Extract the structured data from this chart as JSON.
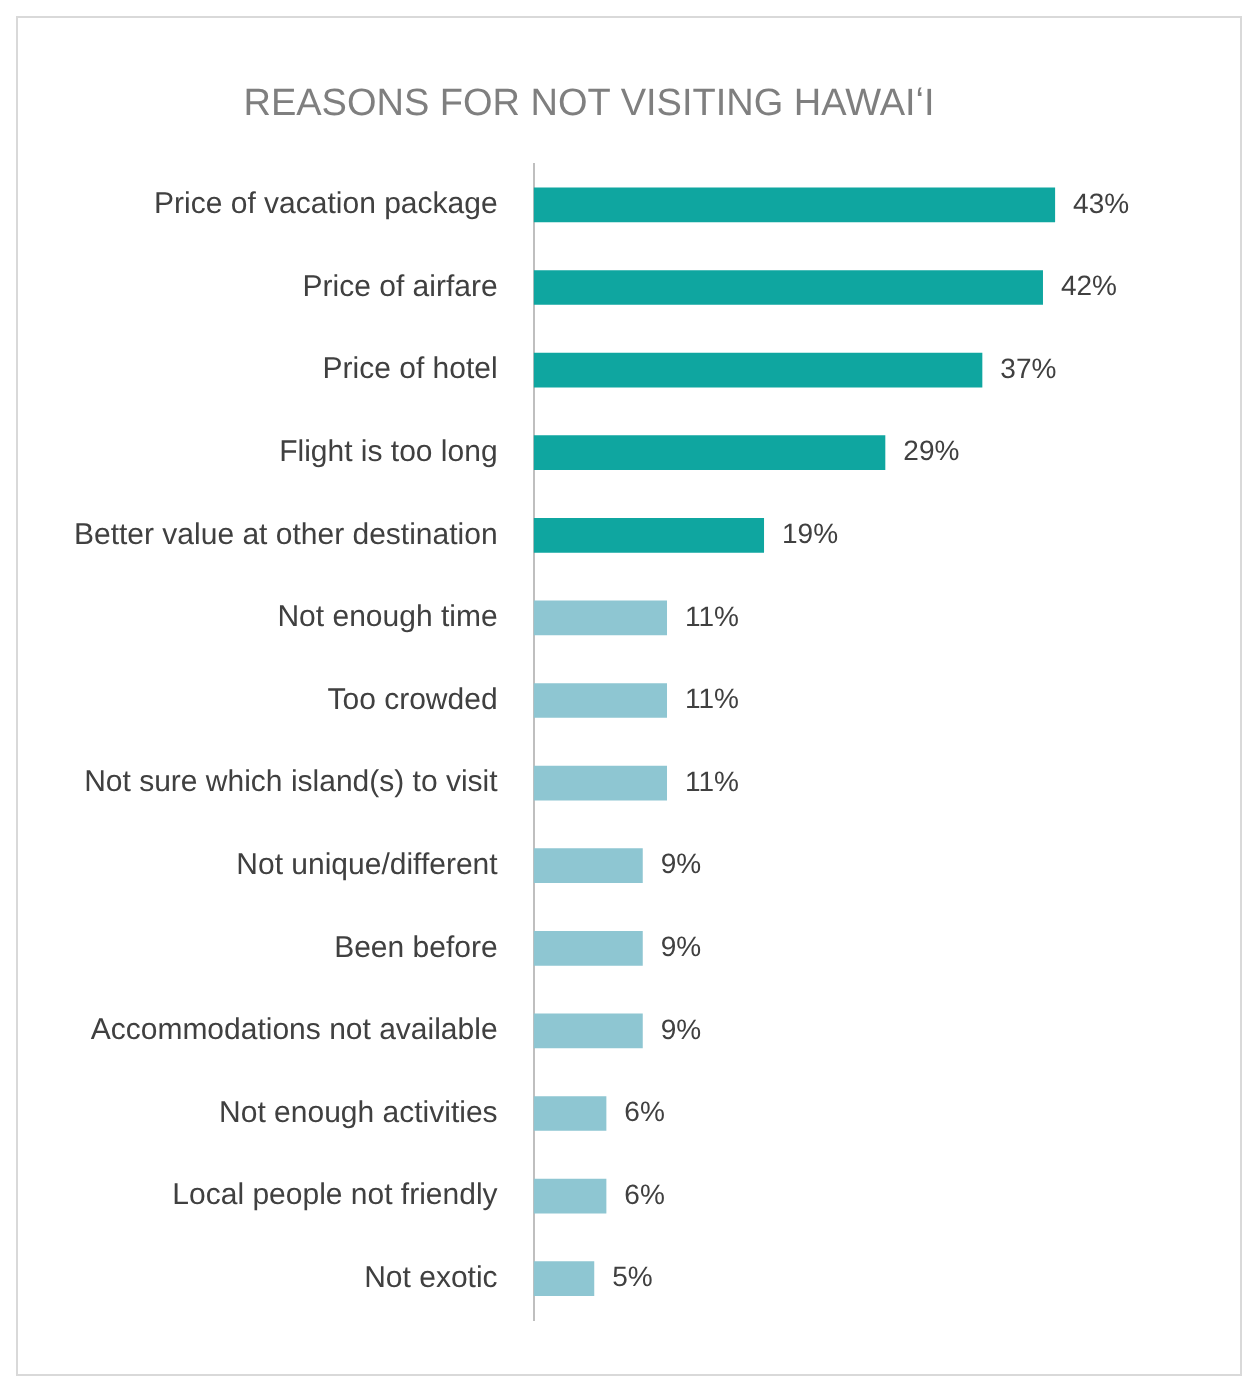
{
  "chart_data": {
    "type": "bar",
    "orientation": "horizontal",
    "title": "REASONS FOR NOT VISITING HAWAIʻI",
    "categories": [
      "Price of vacation package",
      "Price of airfare",
      "Price of hotel",
      "Flight is too long",
      "Better value at other destination",
      "Not enough time",
      "Too crowded",
      "Not sure which island(s) to visit",
      "Not unique/different",
      "Been before",
      "Accommodations not available",
      "Not enough activities",
      "Local people not friendly",
      "Not exotic"
    ],
    "values": [
      43,
      42,
      37,
      29,
      19,
      11,
      11,
      11,
      9,
      9,
      9,
      6,
      6,
      5
    ],
    "value_labels": [
      "43%",
      "42%",
      "37%",
      "29%",
      "19%",
      "11%",
      "11%",
      "11%",
      "9%",
      "9%",
      "9%",
      "6%",
      "6%",
      "5%"
    ],
    "colors": [
      "#0fa6a0",
      "#0fa6a0",
      "#0fa6a0",
      "#0fa6a0",
      "#0fa6a0",
      "#8ec6d2",
      "#8ec6d2",
      "#8ec6d2",
      "#8ec6d2",
      "#8ec6d2",
      "#8ec6d2",
      "#8ec6d2",
      "#8ec6d2",
      "#8ec6d2"
    ],
    "legend": false,
    "tick_labels": "y"
  }
}
